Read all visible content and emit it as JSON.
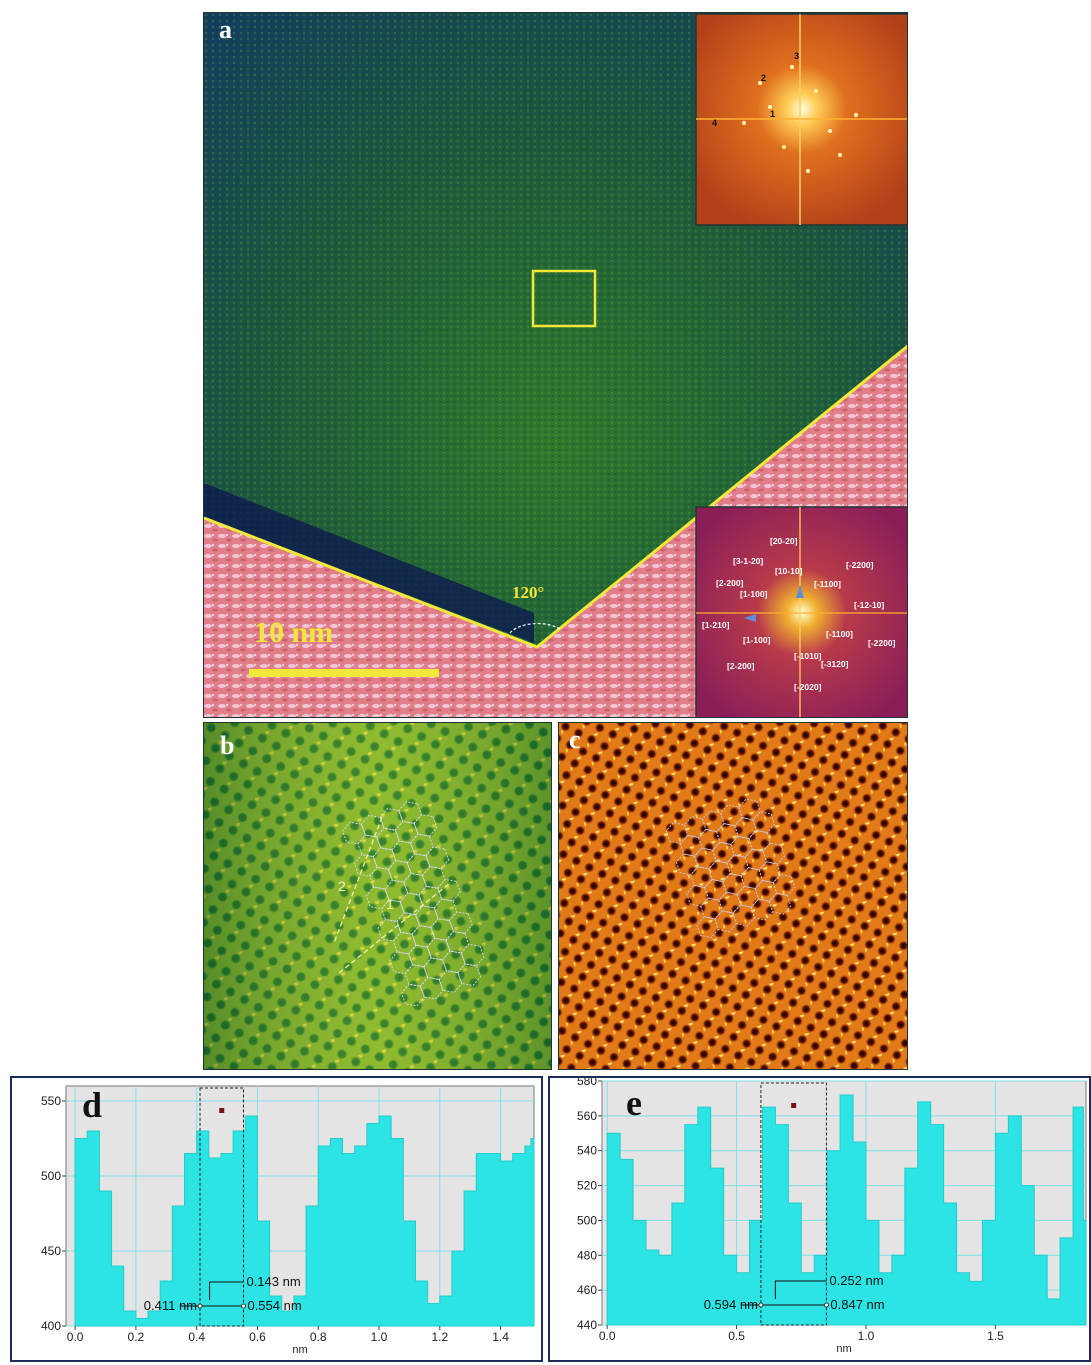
{
  "panels": {
    "a": {
      "letter": "a",
      "scalebar_label": "10 nm",
      "angle_label": "120°",
      "fft_top_spots": [
        "1",
        "2",
        "3",
        "4"
      ],
      "fft_bottom_indices": [
        "[20-20]",
        "[3-1-20]",
        "[-2200]",
        "[10-10]",
        "[2-200]",
        "[-1100]",
        "[1-100]",
        "[-12-10]",
        "[1-210]",
        "[-1100]",
        "[1-100]",
        "[-2200]",
        "[-1010]",
        "[2-200]",
        "[-3120]",
        "[-2020]"
      ]
    },
    "b": {
      "letter": "b",
      "line_labels": [
        "2",
        "1"
      ]
    },
    "c": {
      "letter": "c"
    },
    "d": {
      "letter": "d"
    },
    "e": {
      "letter": "e"
    }
  },
  "chart_data": [
    {
      "panel": "d",
      "type": "area",
      "xlabel": "nm",
      "xlim": [
        -0.03,
        1.51
      ],
      "ylim": [
        400,
        560
      ],
      "xticks": [
        "0.0",
        "0.2",
        "0.4",
        "0.6",
        "0.8",
        "1.0",
        "1.2",
        "1.4"
      ],
      "xtick_values": [
        0.0,
        0.2,
        0.4,
        0.6,
        0.8,
        1.0,
        1.2,
        1.4
      ],
      "yticks": [
        "400",
        "450",
        "500",
        "550"
      ],
      "ytick_values": [
        400,
        450,
        500,
        550
      ],
      "grid": true,
      "x": [
        0.0,
        0.04,
        0.08,
        0.12,
        0.16,
        0.2,
        0.24,
        0.28,
        0.32,
        0.36,
        0.4,
        0.44,
        0.48,
        0.52,
        0.56,
        0.6,
        0.64,
        0.68,
        0.72,
        0.76,
        0.8,
        0.84,
        0.88,
        0.92,
        0.96,
        1.0,
        1.04,
        1.08,
        1.12,
        1.16,
        1.2,
        1.24,
        1.28,
        1.32,
        1.36,
        1.4,
        1.44,
        1.48,
        1.5
      ],
      "y": [
        525,
        530,
        490,
        440,
        410,
        405,
        410,
        430,
        480,
        515,
        530,
        512,
        515,
        530,
        540,
        470,
        420,
        410,
        420,
        480,
        520,
        525,
        515,
        520,
        535,
        540,
        525,
        470,
        430,
        415,
        420,
        450,
        490,
        515,
        515,
        510,
        515,
        520,
        525
      ],
      "selection": {
        "x_start": 0.411,
        "x_end": 0.554
      },
      "annotations": [
        {
          "text": "0.143 nm"
        },
        {
          "text": "0.411 nm"
        },
        {
          "text": "0.554 nm"
        }
      ]
    },
    {
      "panel": "e",
      "type": "area",
      "xlabel": "nm",
      "xlim": [
        -0.02,
        1.85
      ],
      "ylim": [
        440,
        580
      ],
      "xticks": [
        "0.0",
        "0.5",
        "1.0",
        "1.5"
      ],
      "xtick_values": [
        0.0,
        0.5,
        1.0,
        1.5
      ],
      "yticks": [
        "440",
        "460",
        "480",
        "500",
        "520",
        "540",
        "560",
        "580"
      ],
      "ytick_values": [
        440,
        460,
        480,
        500,
        520,
        540,
        560,
        580
      ],
      "grid": true,
      "x": [
        0.0,
        0.05,
        0.1,
        0.15,
        0.2,
        0.25,
        0.3,
        0.35,
        0.4,
        0.45,
        0.5,
        0.55,
        0.6,
        0.65,
        0.7,
        0.75,
        0.8,
        0.85,
        0.9,
        0.95,
        1.0,
        1.05,
        1.1,
        1.15,
        1.2,
        1.25,
        1.3,
        1.35,
        1.4,
        1.45,
        1.5,
        1.55,
        1.6,
        1.65,
        1.7,
        1.75,
        1.8,
        1.84
      ],
      "y": [
        550,
        535,
        500,
        483,
        480,
        510,
        555,
        565,
        530,
        480,
        470,
        500,
        565,
        555,
        510,
        470,
        480,
        540,
        572,
        545,
        500,
        470,
        480,
        530,
        568,
        555,
        510,
        470,
        465,
        500,
        550,
        560,
        520,
        480,
        455,
        490,
        565,
        500
      ],
      "selection": {
        "x_start": 0.594,
        "x_end": 0.847
      },
      "annotations": [
        {
          "text": "0.252 nm"
        },
        {
          "text": "0.594 nm"
        },
        {
          "text": "0.847 nm"
        }
      ]
    }
  ]
}
